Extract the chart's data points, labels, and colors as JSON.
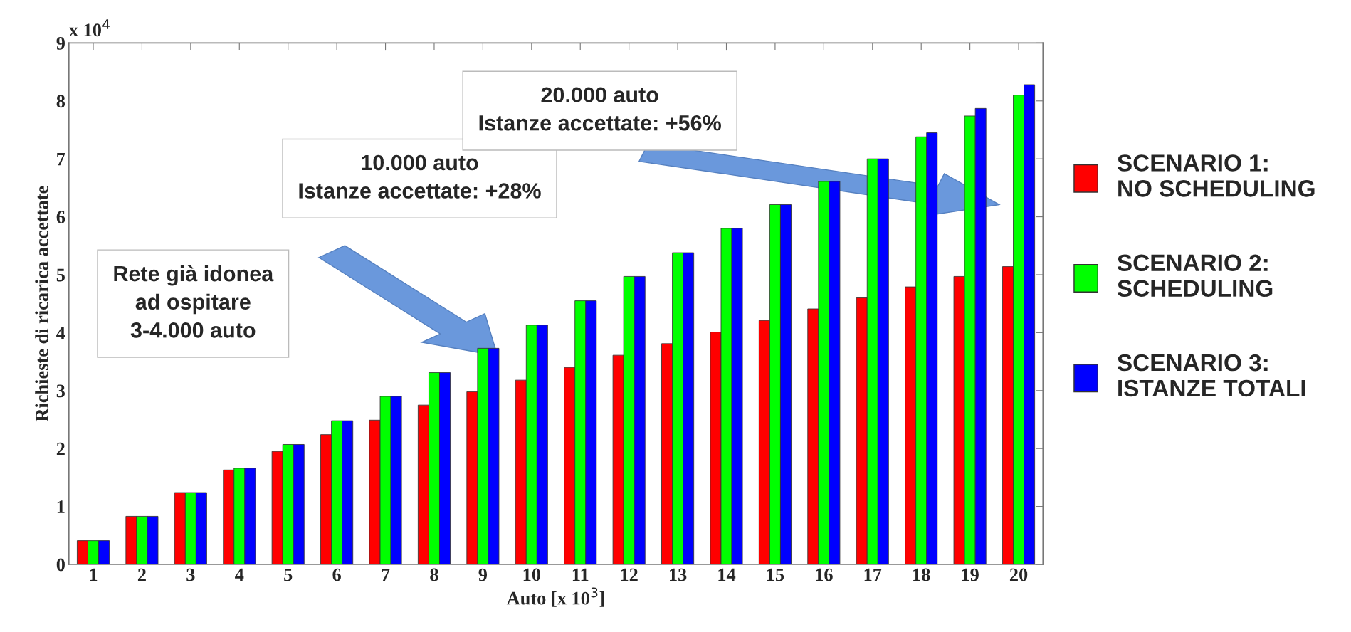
{
  "chart_data": {
    "type": "bar",
    "xlabel": "Auto [x 10$^{3}$]",
    "ylabel": "Richieste di ricarica accettate",
    "categories": [
      "1",
      "2",
      "3",
      "4",
      "5",
      "6",
      "7",
      "8",
      "9",
      "10",
      "11",
      "12",
      "13",
      "14",
      "15",
      "16",
      "17",
      "18",
      "19",
      "20"
    ],
    "series": [
      {
        "name": "SCENARIO 1:\nNO SCHEDULING",
        "color": "#ff0000",
        "values": [
          0.41,
          0.83,
          1.24,
          1.63,
          1.95,
          2.24,
          2.49,
          2.75,
          2.98,
          3.18,
          3.4,
          3.61,
          3.81,
          4.01,
          4.21,
          4.41,
          4.6,
          4.79,
          4.97,
          5.14
        ]
      },
      {
        "name": "SCENARIO 2:\nSCHEDULING",
        "color": "#00ff00",
        "values": [
          0.41,
          0.83,
          1.24,
          1.66,
          2.07,
          2.48,
          2.9,
          3.31,
          3.73,
          4.13,
          4.55,
          4.97,
          5.38,
          5.8,
          6.21,
          6.61,
          7.0,
          7.38,
          7.74,
          8.1
        ]
      },
      {
        "name": "SCENARIO 3:\nISTANZE TOTALI",
        "color": "#0000ff",
        "values": [
          0.41,
          0.83,
          1.24,
          1.66,
          2.07,
          2.48,
          2.9,
          3.31,
          3.73,
          4.13,
          4.55,
          4.97,
          5.38,
          5.8,
          6.21,
          6.61,
          7.0,
          7.45,
          7.87,
          8.28
        ]
      }
    ],
    "ylim": [
      0,
      9
    ],
    "yticks": [
      0,
      1,
      2,
      3,
      4,
      5,
      6,
      7,
      8,
      9
    ],
    "grid": false,
    "legend": "right",
    "annotations": [
      "x 10$^{4}$",
      "Rete già idonea\nad ospitare\n3-4.000 auto",
      "10.000 auto\nIstanze accettate: +28%",
      "20.000 auto\nIstanze accettate: +56%"
    ]
  }
}
